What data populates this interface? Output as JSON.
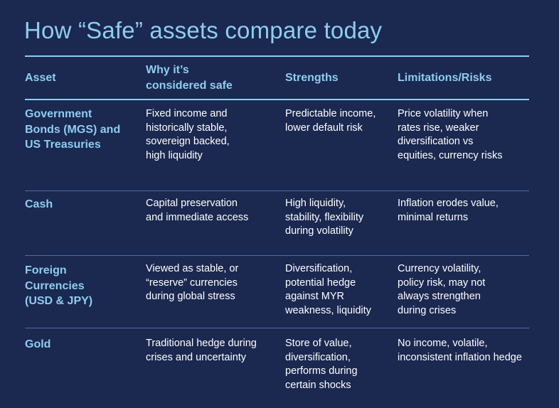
{
  "title": "How “Safe” assets compare  today",
  "colors": {
    "background": "#1b2850",
    "accent": "#8ecdf0",
    "divider": "#4f6e9e",
    "text": "#ffffff"
  },
  "headers": [
    "Asset",
    "Why it’s\nconsidered safe",
    "Strengths",
    "Limitations/Risks"
  ],
  "rows": [
    {
      "asset": "Government\nBonds (MGS) and\nUS Treasuries",
      "why": "Fixed income and\nhistorically stable,\nsovereign backed,\nhigh liquidity",
      "strengths": "Predictable income,\nlower default risk",
      "risks": "Price volatility when\nrates rise, weaker\ndiversification vs\nequities, currency risks"
    },
    {
      "asset": "Cash",
      "why": "Capital preservation\nand immediate access",
      "strengths": "High liquidity,\nstability, flexibility\nduring volatility",
      "risks": "Inflation erodes value,\nminimal returns"
    },
    {
      "asset": "Foreign\nCurrencies\n(USD & JPY)",
      "why": "Viewed as stable, or\n“reserve” currencies\nduring global stress",
      "strengths": "Diversification,\npotential hedge\nagainst MYR\nweakness, liquidity",
      "risks": "Currency volatility,\npolicy risk, may not\nalways strengthen\nduring crises"
    },
    {
      "asset": "Gold",
      "why": "Traditional hedge during\ncrises and uncertainty",
      "strengths": "Store of value,\ndiversification,\nperforms during\ncertain shocks",
      "risks": "No income, volatile,\ninconsistent inflation hedge"
    }
  ]
}
